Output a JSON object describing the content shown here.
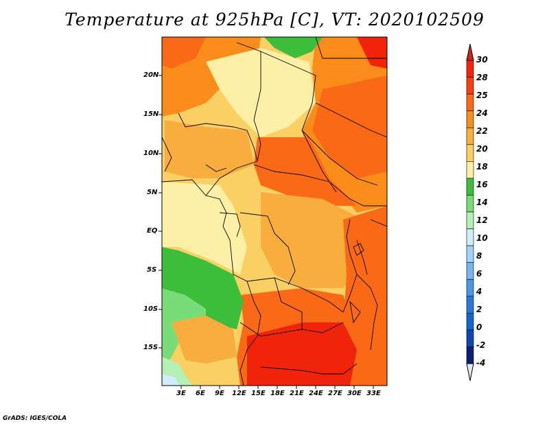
{
  "title": "Temperature at 925hPa [C], VT: 2020102509",
  "credit": "GrADS: IGES/COLA",
  "map": {
    "lat_ticks": [
      "20N",
      "15N",
      "10N",
      "5N",
      "EQ",
      "5S",
      "10S",
      "15S"
    ],
    "lon_ticks": [
      "3E",
      "6E",
      "9E",
      "12E",
      "15E",
      "18E",
      "21E",
      "24E",
      "27E",
      "30E",
      "33E"
    ]
  },
  "colorbar": {
    "labels": [
      "30",
      "28",
      "25",
      "24",
      "22",
      "20",
      "18",
      "16",
      "14",
      "12",
      "10",
      "8",
      "6",
      "4",
      "2",
      "0",
      "-2",
      "-4"
    ],
    "colors": [
      "#f0240a",
      "#fa3c14",
      "#fa6a16",
      "#fa8c1a",
      "#f8ad3c",
      "#fad064",
      "#fdf0a6",
      "#3cbe3c",
      "#78dc78",
      "#b4f0b4",
      "#d2ecfa",
      "#a0d2fa",
      "#78b4f0",
      "#4b96e6",
      "#2878dc",
      "#1464d2",
      "#0a46b4",
      "#0a1e78"
    ],
    "over_color": "#d2241a",
    "under_color": "#e6e6fa"
  }
}
